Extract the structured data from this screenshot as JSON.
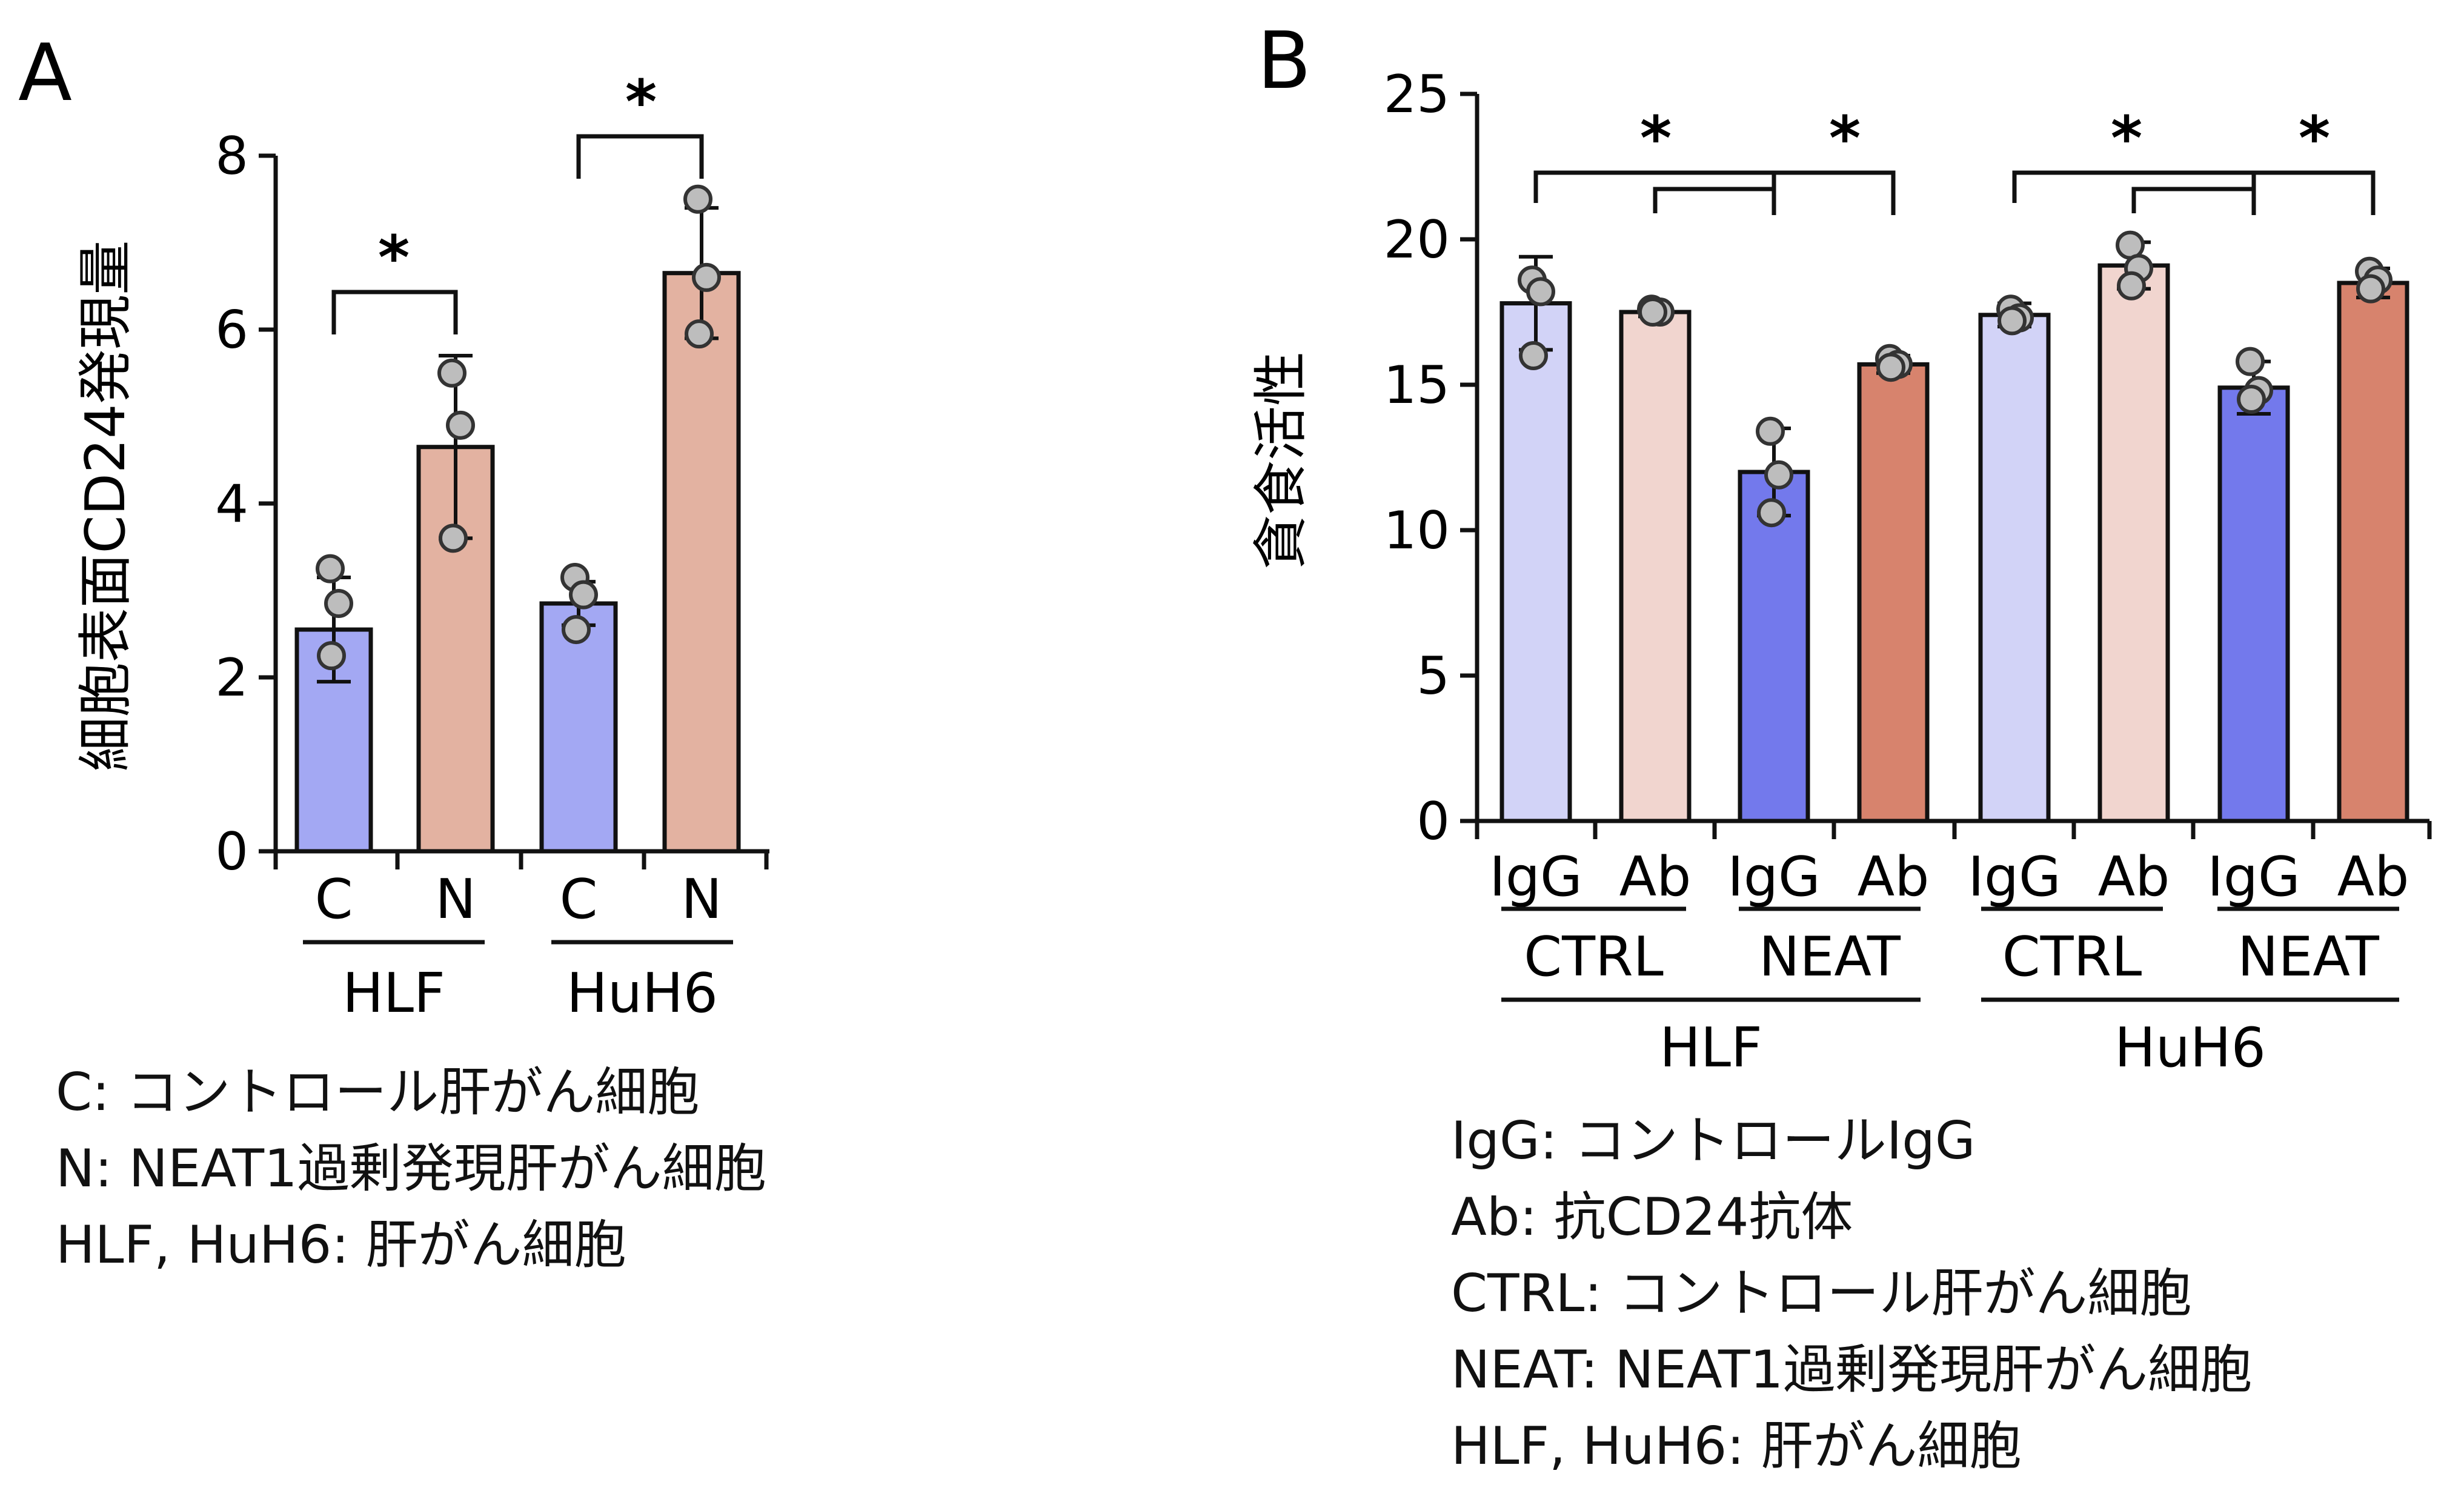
{
  "colors": {
    "hlf_c": "#a3a8f3",
    "hlf_n": "#e3b2a1",
    "igg_ctrl": "#d2d3f7",
    "ab_ctrl": "#f1d5cf",
    "igg_neat": "#7379ec",
    "ab_neat": "#d7836d",
    "axis": "#111111",
    "point_fill": "#bdbdbd"
  },
  "panel_a": {
    "letter": "A",
    "legend": [
      "C: コントロール肝がん細胞",
      "N: NEAT1過剰発現肝がん細胞",
      "HLF, HuH6: 肝がん細胞"
    ]
  },
  "panel_b": {
    "letter": "B",
    "legend": [
      "IgG: コントロールIgG",
      "Ab: 抗CD24抗体",
      "CTRL: コントロール肝がん細胞",
      "NEAT: NEAT1過剰発現肝がん細胞",
      "HLF, HuH6: 肝がん細胞"
    ]
  },
  "chart_data": [
    {
      "type": "bar",
      "ylabel": "細胞表面CD24発現量",
      "ylim": [
        0,
        8
      ],
      "yticks": [
        0,
        2,
        4,
        6,
        8
      ],
      "categories": [
        "C",
        "N",
        "C",
        "N"
      ],
      "groups": [
        "HLF",
        "HuH6"
      ],
      "values": [
        2.55,
        4.65,
        2.85,
        6.65
      ],
      "errors": [
        0.6,
        1.05,
        0.25,
        0.75
      ],
      "points": [
        [
          3.25,
          2.85,
          2.25
        ],
        [
          5.5,
          4.9,
          3.6
        ],
        [
          3.15,
          2.95,
          2.55
        ],
        [
          7.5,
          6.6,
          5.95
        ]
      ],
      "significance": [
        {
          "from": 0,
          "to": 1,
          "label": "*"
        },
        {
          "from": 2,
          "to": 3,
          "label": "*"
        }
      ]
    },
    {
      "type": "bar",
      "ylabel": "貪食活性",
      "ylim": [
        0,
        25
      ],
      "yticks": [
        0,
        5,
        10,
        15,
        20,
        25
      ],
      "categories": [
        "IgG",
        "Ab",
        "IgG",
        "Ab",
        "IgG",
        "Ab",
        "IgG",
        "Ab"
      ],
      "subgroups": [
        "CTRL",
        "NEAT",
        "CTRL",
        "NEAT"
      ],
      "groups": [
        "HLF",
        "HuH6"
      ],
      "values": [
        17.8,
        17.5,
        12.0,
        15.7,
        17.4,
        19.1,
        14.9,
        18.5
      ],
      "errors": [
        1.6,
        0.15,
        1.5,
        0.3,
        0.4,
        0.8,
        0.9,
        0.5
      ],
      "points": [
        [
          18.6,
          18.2,
          16.0
        ],
        [
          17.6,
          17.5,
          17.5
        ],
        [
          13.4,
          11.9,
          10.6
        ],
        [
          15.9,
          15.7,
          15.6
        ],
        [
          17.6,
          17.3,
          17.2
        ],
        [
          19.8,
          19.0,
          18.4
        ],
        [
          15.8,
          14.8,
          14.5
        ],
        [
          18.9,
          18.6,
          18.3
        ]
      ],
      "significance": [
        {
          "from": 0,
          "to": 2,
          "label": "*"
        },
        {
          "from": 1,
          "to": 2,
          "label": ""
        },
        {
          "from": 2,
          "to": 3,
          "label": "*"
        },
        {
          "from": 4,
          "to": 6,
          "label": "*"
        },
        {
          "from": 5,
          "to": 6,
          "label": ""
        },
        {
          "from": 6,
          "to": 7,
          "label": "*"
        }
      ]
    }
  ]
}
